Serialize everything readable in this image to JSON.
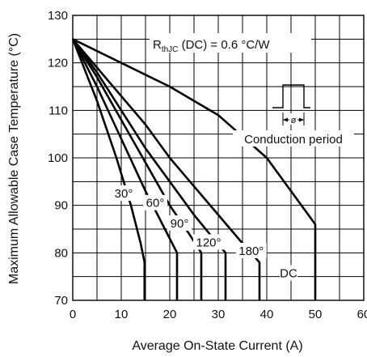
{
  "chart_data": {
    "type": "line",
    "xlabel": "Average On-State Current (A)",
    "ylabel": "Maximum Allowable Case Temperature (°C)",
    "xlim": [
      0,
      60
    ],
    "ylim": [
      70,
      130
    ],
    "x_ticks": [
      0,
      10,
      20,
      30,
      40,
      50,
      60
    ],
    "y_ticks": [
      70,
      80,
      90,
      100,
      110,
      120,
      130
    ],
    "grid": true,
    "annotation": {
      "r_prefix": "R",
      "r_subscript": "thJC",
      "r_suffix": " (DC) = 0.6 °C/W",
      "inset_label": "Conduction period",
      "inset_symbol": "ø"
    },
    "series": [
      {
        "name": "30°",
        "x": [
          0,
          5,
          9,
          12,
          14.0,
          14.8,
          14.8
        ],
        "y": [
          125,
          112,
          100,
          90,
          82,
          78,
          70
        ]
      },
      {
        "name": "60°",
        "x": [
          0,
          5,
          10,
          15,
          19,
          21.5,
          21.5
        ],
        "y": [
          125,
          115,
          104,
          93,
          85,
          80,
          70
        ]
      },
      {
        "name": "90°",
        "x": [
          0,
          5,
          10,
          15,
          20,
          24,
          26.5,
          26.5
        ],
        "y": [
          125,
          117,
          108,
          99,
          90,
          84,
          80,
          70
        ]
      },
      {
        "name": "120°",
        "x": [
          0,
          5,
          10,
          15,
          20,
          25,
          29,
          31.5,
          31.5
        ],
        "y": [
          125,
          118,
          110,
          102,
          95,
          88,
          83,
          80,
          70
        ]
      },
      {
        "name": "180°",
        "x": [
          0,
          5,
          10,
          15,
          20,
          25,
          30,
          35,
          38.5,
          38.5
        ],
        "y": [
          125,
          119,
          113,
          107,
          100,
          94,
          88,
          82,
          78,
          70
        ]
      },
      {
        "name": "DC",
        "x": [
          0,
          10,
          20,
          30,
          40,
          50,
          50
        ],
        "y": [
          125,
          120,
          115,
          109,
          100,
          86,
          70
        ]
      }
    ],
    "series_label_positions": [
      {
        "name": "30°",
        "x": 10.5,
        "y": 92.5
      },
      {
        "name": "60°",
        "x": 17.0,
        "y": 90.5
      },
      {
        "name": "90°",
        "x": 22.0,
        "y": 86.2
      },
      {
        "name": "120°",
        "x": 28.0,
        "y": 82.2
      },
      {
        "name": "180°",
        "x": 36.8,
        "y": 80.4
      },
      {
        "name": "DC",
        "x": 44.5,
        "y": 75.7
      }
    ],
    "axis_line_color": "#000000"
  }
}
